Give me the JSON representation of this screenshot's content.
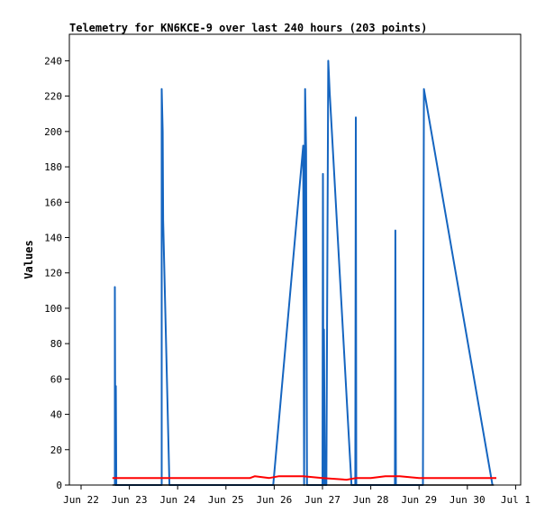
{
  "chart_data": {
    "type": "line",
    "title": "Telemetry for KN6KCE-9 over last 240 hours (203 points)",
    "xlabel": "",
    "ylabel": "Values",
    "xlim": [
      0,
      9
    ],
    "ylim": [
      0,
      255
    ],
    "grid": false,
    "legend": "none",
    "x_tick_labels": [
      "Jun 22",
      "Jun 23",
      "Jun 24",
      "Jun 25",
      "Jun 26",
      "Jun 27",
      "Jun 28",
      "Jun 29",
      "Jun 30",
      "Jul 1"
    ],
    "y_ticks": [
      0,
      20,
      40,
      60,
      80,
      100,
      120,
      140,
      160,
      180,
      200,
      220,
      240
    ],
    "series": [
      {
        "color": "#1565c0",
        "points": [
          [
            0.7,
            0
          ],
          [
            0.7,
            112
          ],
          [
            0.71,
            0
          ],
          [
            0.72,
            56
          ],
          [
            0.73,
            0
          ],
          [
            1.67,
            0
          ],
          [
            1.67,
            224
          ],
          [
            1.69,
            200
          ],
          [
            1.7,
            150
          ],
          [
            1.83,
            0
          ],
          [
            3.98,
            0
          ],
          [
            4.6,
            192
          ],
          [
            4.62,
            0
          ],
          [
            4.64,
            224
          ],
          [
            4.66,
            190
          ],
          [
            4.68,
            0
          ],
          [
            4.83,
            0
          ],
          [
            5.0,
            0
          ],
          [
            5.01,
            176
          ],
          [
            5.02,
            0
          ],
          [
            5.03,
            88
          ],
          [
            5.05,
            0
          ],
          [
            5.08,
            0
          ],
          [
            5.12,
            240
          ],
          [
            5.15,
            222
          ],
          [
            5.6,
            0
          ],
          [
            5.68,
            0
          ],
          [
            5.69,
            208
          ],
          [
            5.7,
            0
          ],
          [
            6.5,
            0
          ],
          [
            6.51,
            144
          ],
          [
            6.52,
            0
          ],
          [
            7.08,
            0
          ],
          [
            7.09,
            112
          ],
          [
            7.1,
            224
          ],
          [
            8.52,
            0
          ]
        ]
      },
      {
        "color": "#ff0000",
        "points": [
          [
            0.65,
            4
          ],
          [
            3.5,
            4
          ],
          [
            3.6,
            5
          ],
          [
            3.9,
            4
          ],
          [
            4.1,
            5
          ],
          [
            4.6,
            5
          ],
          [
            5.0,
            4
          ],
          [
            5.5,
            3
          ],
          [
            5.7,
            4
          ],
          [
            6.0,
            4
          ],
          [
            6.3,
            5
          ],
          [
            6.6,
            5
          ],
          [
            7.0,
            4
          ],
          [
            7.5,
            4
          ],
          [
            8.2,
            4
          ],
          [
            8.6,
            4
          ]
        ]
      },
      {
        "color": "#000000",
        "points": [
          [
            0.65,
            0
          ],
          [
            8.55,
            0
          ]
        ]
      }
    ]
  }
}
